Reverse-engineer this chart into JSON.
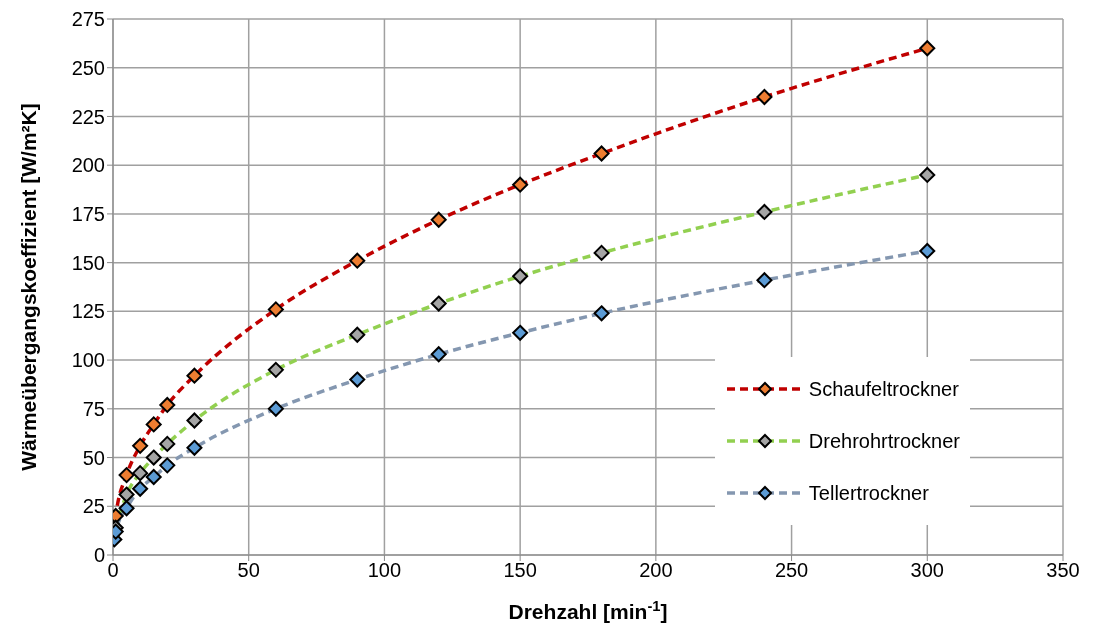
{
  "chart_data": {
    "type": "line",
    "xlabel": "Drehzahl [min$^{-1}$]",
    "ylabel": "Wärmeübergangskoeffizient [W/m²K]",
    "x": [
      0.5,
      1,
      5,
      10,
      15,
      20,
      30,
      60,
      90,
      120,
      150,
      180,
      240,
      300
    ],
    "series": [
      {
        "name": "Schaufeltrockner",
        "color": "#c00000",
        "colors": [
          "#ed7d31",
          "#ed7d31",
          "#ed7d31",
          "#ed7d31",
          "#ed7d31",
          "#ed7d31",
          "#ed7d31",
          "#ed7d31",
          "#ed7d31",
          "#ed7d31",
          "#ed7d31",
          "#ed7d31",
          "#ed7d31",
          "#ed7d31"
        ],
        "values": [
          12,
          20,
          41,
          56,
          67,
          77,
          92,
          126,
          151,
          172,
          190,
          206,
          235,
          260
        ]
      },
      {
        "name": "Drehrohrtrockner",
        "color": "#92d050",
        "colors": [
          "#a5a5a5",
          "#a5a5a5",
          "#a5a5a5",
          "#a5a5a5",
          "#a5a5a5",
          "#a5a5a5",
          "#a5a5a5",
          "#a5a5a5",
          "#a5a5a5",
          "#a5a5a5",
          "#a5a5a5",
          "#a5a5a5",
          "#a5a5a5",
          "#a5a5a5"
        ],
        "values": [
          null,
          14,
          31,
          42,
          50,
          57,
          69,
          95,
          113,
          129,
          143,
          155,
          176,
          195
        ]
      },
      {
        "name": "Tellertrockner",
        "color": "#8497b0",
        "colors": [
          "#5b9bd5",
          "#5b9bd5",
          "#5b9bd5",
          "#5b9bd5",
          "#5b9bd5",
          "#5b9bd5",
          "#5b9bd5",
          "#5b9bd5",
          "#5b9bd5",
          "#5b9bd5",
          "#5b9bd5",
          "#5b9bd5",
          "#5b9bd5",
          "#5b9bd5"
        ],
        "values": [
          8,
          12,
          24,
          34,
          40,
          46,
          55,
          75,
          90,
          103,
          114,
          124,
          141,
          156
        ]
      }
    ],
    "xlim": [
      0,
      350
    ],
    "xticks": [
      0,
      50,
      100,
      150,
      200,
      250,
      300,
      350
    ],
    "ylim": [
      0,
      275
    ],
    "yticks": [
      0,
      25,
      50,
      75,
      100,
      125,
      150,
      175,
      200,
      225,
      250,
      275
    ],
    "grid": true,
    "legend": "bottom right",
    "marker": "diamond",
    "line_style": "dashed"
  }
}
